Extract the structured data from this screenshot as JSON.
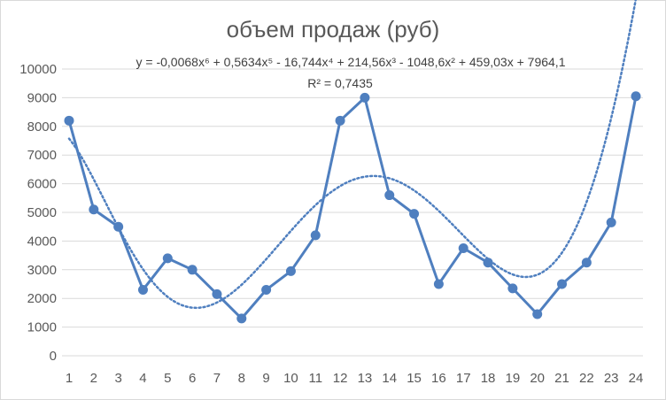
{
  "chart_data": {
    "type": "line",
    "title": "объем продаж (руб)",
    "categories": [
      "1",
      "2",
      "3",
      "4",
      "5",
      "6",
      "7",
      "8",
      "9",
      "10",
      "11",
      "12",
      "13",
      "14",
      "15",
      "16",
      "17",
      "18",
      "19",
      "20",
      "21",
      "22",
      "23",
      "24"
    ],
    "series": [
      {
        "values": [
          8200,
          5100,
          4500,
          2300,
          3400,
          3000,
          2150,
          1300,
          2300,
          2950,
          4200,
          8200,
          9000,
          5600,
          4950,
          2500,
          3750,
          3250,
          2350,
          1450,
          2500,
          3250,
          4650,
          9050
        ],
        "color": "#4f7fbf"
      }
    ],
    "trendline": {
      "type": "polynomial",
      "order": 6,
      "style": "dotted",
      "color": "#4f7fbf",
      "equation_label": "y = -0,0068x⁶ + 0,5634x⁵ - 16,744x⁴ + 214,56x³ - 1048,6x² + 459,03x + 7964,1",
      "r2_label": "R² = 0,7435",
      "coefficients": [
        7964.1,
        459.03,
        -1048.6,
        214.56,
        -16.744,
        0.5634,
        -0.0068
      ]
    },
    "ylim": [
      0,
      10000
    ],
    "y_ticks": [
      "0",
      "1000",
      "2000",
      "3000",
      "4000",
      "5000",
      "6000",
      "7000",
      "8000",
      "9000",
      "10000"
    ],
    "grid": true,
    "legend": "none",
    "xlabel": "",
    "ylabel": ""
  }
}
